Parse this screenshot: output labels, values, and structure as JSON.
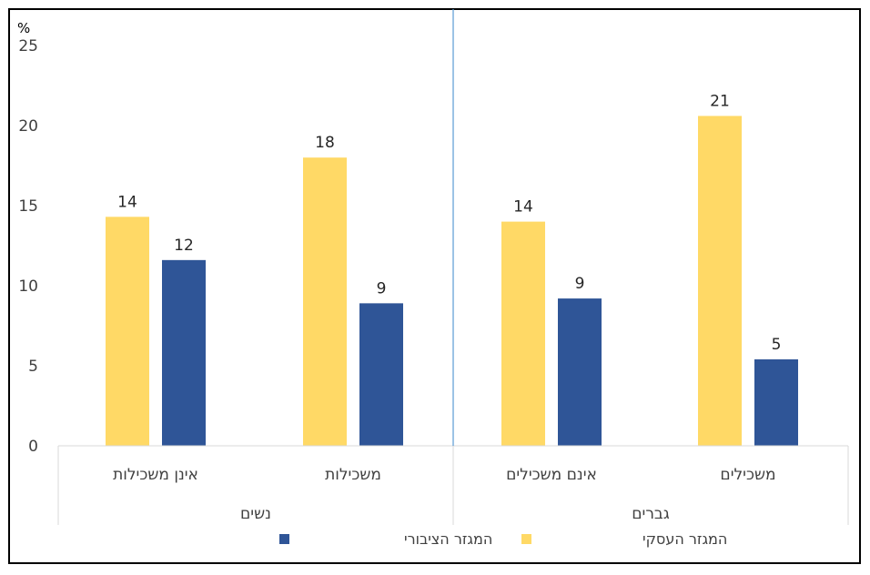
{
  "chart_data": {
    "type": "bar",
    "y_unit": "%",
    "ylim": [
      0,
      25
    ],
    "yticks": [
      0,
      5,
      10,
      15,
      20,
      25
    ],
    "grid": false,
    "legend_position": "bottom",
    "groups": [
      {
        "label": "גברים",
        "categories": [
          "משכילים",
          "אינם משכילים"
        ]
      },
      {
        "label": "נשים",
        "categories": [
          "משכילות",
          "אינן משכילות"
        ]
      }
    ],
    "categories": [
      "משכילים",
      "אינם משכילים",
      "משכילות",
      "אינן משכילות"
    ],
    "series": [
      {
        "name": "המגזר העסקי",
        "color": "#FFD966",
        "values": [
          21,
          14,
          18,
          14
        ],
        "labels": [
          "21",
          "14",
          "18",
          "14"
        ]
      },
      {
        "name": "המגזר הציבורי",
        "color": "#2F5597",
        "values": [
          5,
          9,
          9,
          12
        ],
        "labels": [
          "5",
          "9",
          "9",
          "12"
        ]
      }
    ],
    "bar_heights_estimated": [
      [
        20.6,
        14.0,
        18.0,
        14.3
      ],
      [
        5.4,
        9.2,
        8.9,
        11.6
      ]
    ]
  }
}
